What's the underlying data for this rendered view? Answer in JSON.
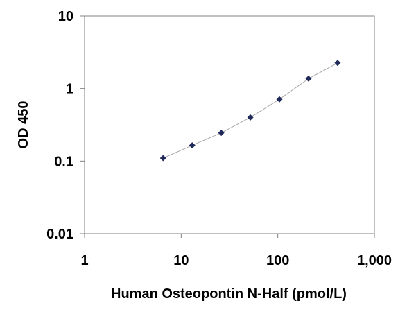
{
  "chart_data": {
    "type": "scatter",
    "title": "",
    "xlabel": "Human Osteopontin N-Half  (pmol/L)",
    "ylabel": "OD 450",
    "x_scale": "log",
    "y_scale": "log",
    "xlim": [
      1,
      1000
    ],
    "ylim": [
      0.01,
      10
    ],
    "x_ticks": [
      1,
      10,
      100,
      1000
    ],
    "x_tick_labels": [
      "1",
      "10",
      "100",
      "1,000"
    ],
    "y_ticks": [
      0.01,
      0.1,
      1,
      10
    ],
    "y_tick_labels": [
      "0.01",
      "0.1",
      "1",
      "10"
    ],
    "grid": false,
    "legend": "none",
    "series": [
      {
        "marker": "diamond",
        "color": "#1f2a5a",
        "trendline": true,
        "trendline_color": "#a6a6a6",
        "x": [
          6.5,
          13,
          26,
          52,
          104,
          208,
          416
        ],
        "y": [
          0.11,
          0.165,
          0.245,
          0.4,
          0.71,
          1.37,
          2.25
        ]
      }
    ]
  }
}
